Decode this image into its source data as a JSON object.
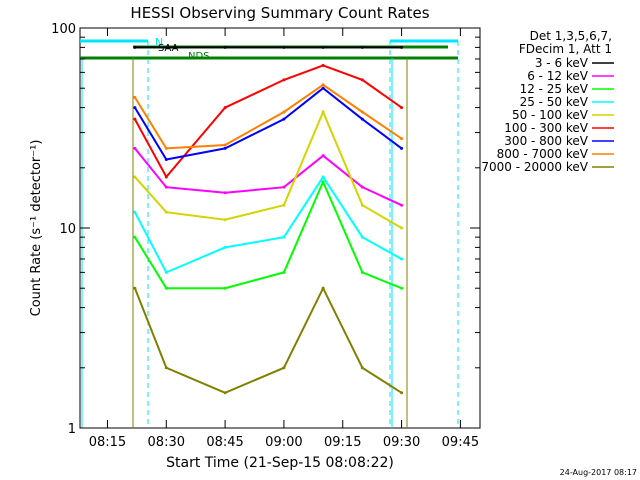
{
  "chart_data": {
    "type": "line",
    "title": "HESSI Observing Summary Count Rates",
    "xlabel": "Start Time (21-Sep-15 08:08:22)",
    "ylabel": "Count Rate (s⁻¹ detector⁻¹)",
    "yscale": "log",
    "ylim": [
      1,
      100
    ],
    "xlim_minutes": [
      "08:08",
      "09:50"
    ],
    "x_ticks": [
      "08:15",
      "08:30",
      "08:45",
      "09:00",
      "09:15",
      "09:30",
      "09:45"
    ],
    "y_ticks": [
      "1",
      "10",
      "100"
    ],
    "legend_header": [
      "Det 1,3,5,6,7,",
      "FDecim 1, Att 1"
    ],
    "legend_position": "right",
    "annotations": {
      "flag_labels": [
        "N",
        "SAA",
        "NDS"
      ],
      "footer": "24-Aug-2017 08:17"
    },
    "series": [
      {
        "name": "3 - 6 keV",
        "color": "#000000",
        "x": [
          "08:22",
          "08:30",
          "08:45",
          "09:00",
          "09:10",
          "09:20",
          "09:30"
        ],
        "y": [
          80,
          80,
          80,
          80,
          80,
          80,
          80
        ]
      },
      {
        "name": "6 - 12 keV",
        "color": "#ff00ff",
        "x": [
          "08:22",
          "08:30",
          "08:45",
          "09:00",
          "09:10",
          "09:20",
          "09:30"
        ],
        "y": [
          25,
          16,
          15,
          16,
          23,
          16,
          13
        ]
      },
      {
        "name": "12 - 25 keV",
        "color": "#00ff00",
        "x": [
          "08:22",
          "08:30",
          "08:45",
          "09:00",
          "09:10",
          "09:20",
          "09:30"
        ],
        "y": [
          9,
          5,
          5,
          6,
          17,
          6,
          5
        ]
      },
      {
        "name": "25 - 50 keV",
        "color": "#00ffff",
        "x": [
          "08:22",
          "08:30",
          "08:45",
          "09:00",
          "09:10",
          "09:20",
          "09:30"
        ],
        "y": [
          12,
          6,
          8,
          9,
          18,
          9,
          7
        ]
      },
      {
        "name": "50 - 100 keV",
        "color": "#d4d400",
        "x": [
          "08:22",
          "08:30",
          "08:45",
          "09:00",
          "09:10",
          "09:20",
          "09:30"
        ],
        "y": [
          18,
          12,
          11,
          13,
          38,
          13,
          10
        ]
      },
      {
        "name": "100 - 300 keV",
        "color": "#ff0000",
        "x": [
          "08:22",
          "08:30",
          "08:45",
          "09:00",
          "09:10",
          "09:20",
          "09:30"
        ],
        "y": [
          35,
          18,
          40,
          55,
          65,
          55,
          40
        ]
      },
      {
        "name": "300 - 800 keV",
        "color": "#0000ff",
        "x": [
          "08:22",
          "08:30",
          "08:45",
          "09:00",
          "09:10",
          "09:20",
          "09:30"
        ],
        "y": [
          40,
          22,
          25,
          35,
          50,
          35,
          25
        ]
      },
      {
        "name": "800 - 7000 keV",
        "color": "#ff8000",
        "x": [
          "08:22",
          "08:30",
          "08:45",
          "09:00",
          "09:10",
          "09:20",
          "09:30"
        ],
        "y": [
          45,
          25,
          26,
          38,
          52,
          38,
          28
        ]
      },
      {
        "name": "7000 - 20000 keV",
        "color": "#808000",
        "x": [
          "08:22",
          "08:30",
          "08:45",
          "09:00",
          "09:10",
          "09:20",
          "09:30"
        ],
        "y": [
          5,
          2,
          1.5,
          2,
          5,
          2,
          1.5
        ]
      }
    ]
  }
}
